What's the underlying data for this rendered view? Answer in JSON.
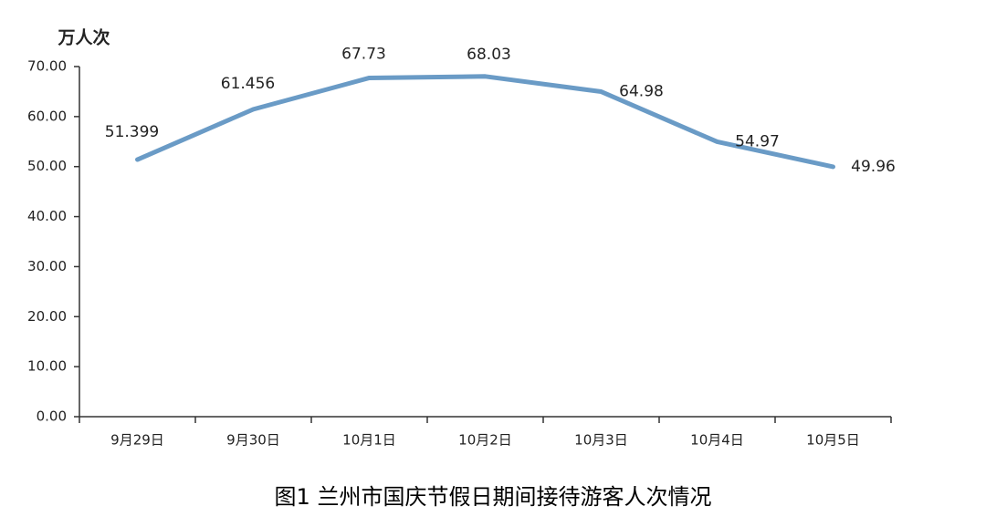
{
  "chart_data": {
    "type": "line",
    "title": "图1 兰州市国庆节假日期间接待游客人次情况",
    "y_label": "万人次",
    "categories": [
      "9月29日",
      "9月30日",
      "10月1日",
      "10月2日",
      "10月3日",
      "10月4日",
      "10月5日"
    ],
    "series": [
      {
        "name": "接待游客人次",
        "color": "#6a9bc6",
        "values": [
          51.399,
          61.456,
          67.73,
          68.03,
          64.98,
          54.97,
          49.96
        ]
      }
    ],
    "ylim": [
      0,
      70
    ],
    "yticks": [
      {
        "value": 0,
        "label": "0.00"
      },
      {
        "value": 10,
        "label": "10.00"
      },
      {
        "value": 20,
        "label": "20.00"
      },
      {
        "value": 30,
        "label": "30.00"
      },
      {
        "value": 40,
        "label": "40.00"
      },
      {
        "value": 50,
        "label": "50.00"
      },
      {
        "value": 60,
        "label": "60.00"
      },
      {
        "value": 70,
        "label": "70.00"
      }
    ],
    "grid": false
  }
}
